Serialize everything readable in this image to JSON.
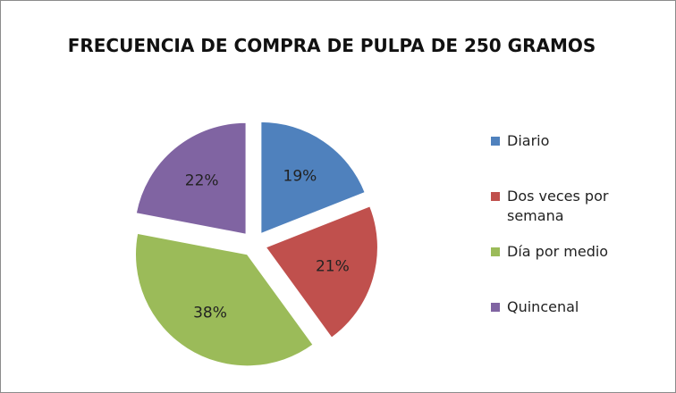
{
  "chart_data": {
    "type": "pie",
    "title": "FRECUENCIA DE COMPRA DE PULPA DE 250 GRAMOS",
    "categories": [
      "Diario",
      "Dos veces por semana",
      "Día por medio",
      "Quincenal"
    ],
    "values": [
      19,
      21,
      38,
      22
    ],
    "value_labels": [
      "19%",
      "21%",
      "38%",
      "22%"
    ],
    "colors": [
      "#4f81bd",
      "#c0504d",
      "#9bbb59",
      "#8064a2"
    ],
    "legend": "right"
  }
}
